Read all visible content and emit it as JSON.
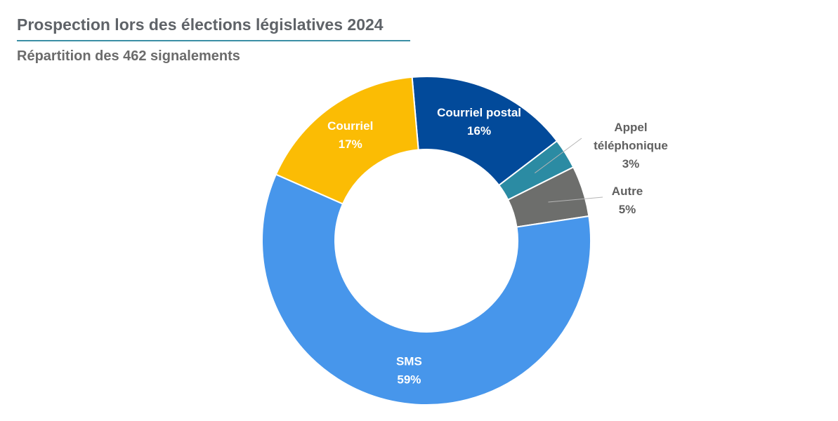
{
  "header": {
    "title": "Prospection lors des élections législatives 2024",
    "subtitle": "Répartition des 462 signalements"
  },
  "chart_data": {
    "type": "pie",
    "donut": true,
    "title": "Prospection lors des élections législatives 2024",
    "subtitle": "Répartition des 462 signalements",
    "legend": "none",
    "slices": [
      {
        "label": "Courriel postal",
        "label_lines": [
          "Courriel postal"
        ],
        "value": 16,
        "value_label": "16%",
        "color": "#024a9a",
        "label_color": "#ffffff",
        "outside": false
      },
      {
        "label": "Appel téléphonique",
        "label_lines": [
          "Appel",
          "téléphonique"
        ],
        "value": 3,
        "value_label": "3%",
        "color": "#2b8ba3",
        "label_color": "#606060",
        "outside": true
      },
      {
        "label": "Autre",
        "label_lines": [
          "Autre"
        ],
        "value": 5,
        "value_label": "5%",
        "color": "#6d6e6c",
        "label_color": "#606060",
        "outside": true
      },
      {
        "label": "SMS",
        "label_lines": [
          "SMS"
        ],
        "value": 59,
        "value_label": "59%",
        "color": "#4796eb",
        "label_color": "#ffffff",
        "outside": false
      },
      {
        "label": "Courriel",
        "label_lines": [
          "Courriel"
        ],
        "value": 17,
        "value_label": "17%",
        "color": "#fbbc04",
        "label_color": "#ffffff",
        "outside": false
      }
    ]
  }
}
